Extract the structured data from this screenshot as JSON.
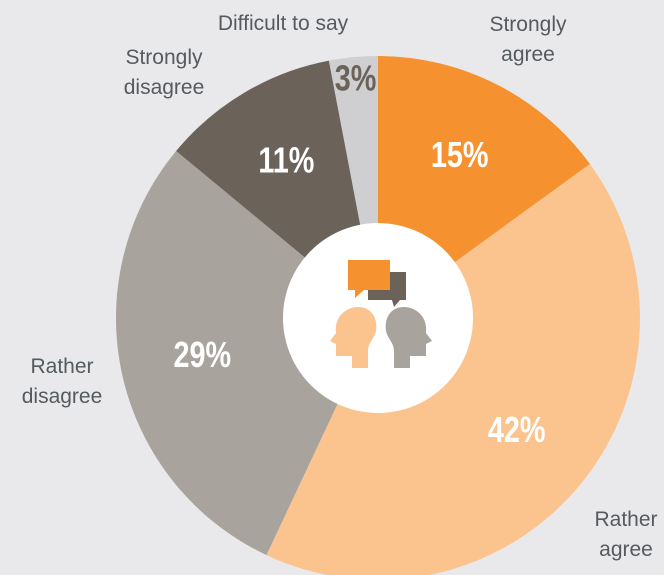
{
  "chart_data": {
    "type": "donut",
    "categories": [
      "Strongly agree",
      "Rather agree",
      "Rather disagree",
      "Strongly disagree",
      "Difficult to say"
    ],
    "values": [
      15,
      42,
      29,
      11,
      3
    ],
    "value_labels": [
      "15%",
      "42%",
      "29%",
      "11%",
      "3%"
    ],
    "colors": [
      "#f5922f",
      "#fbc48f",
      "#a9a39d",
      "#6b6259",
      "#cfcfd1"
    ]
  }
}
